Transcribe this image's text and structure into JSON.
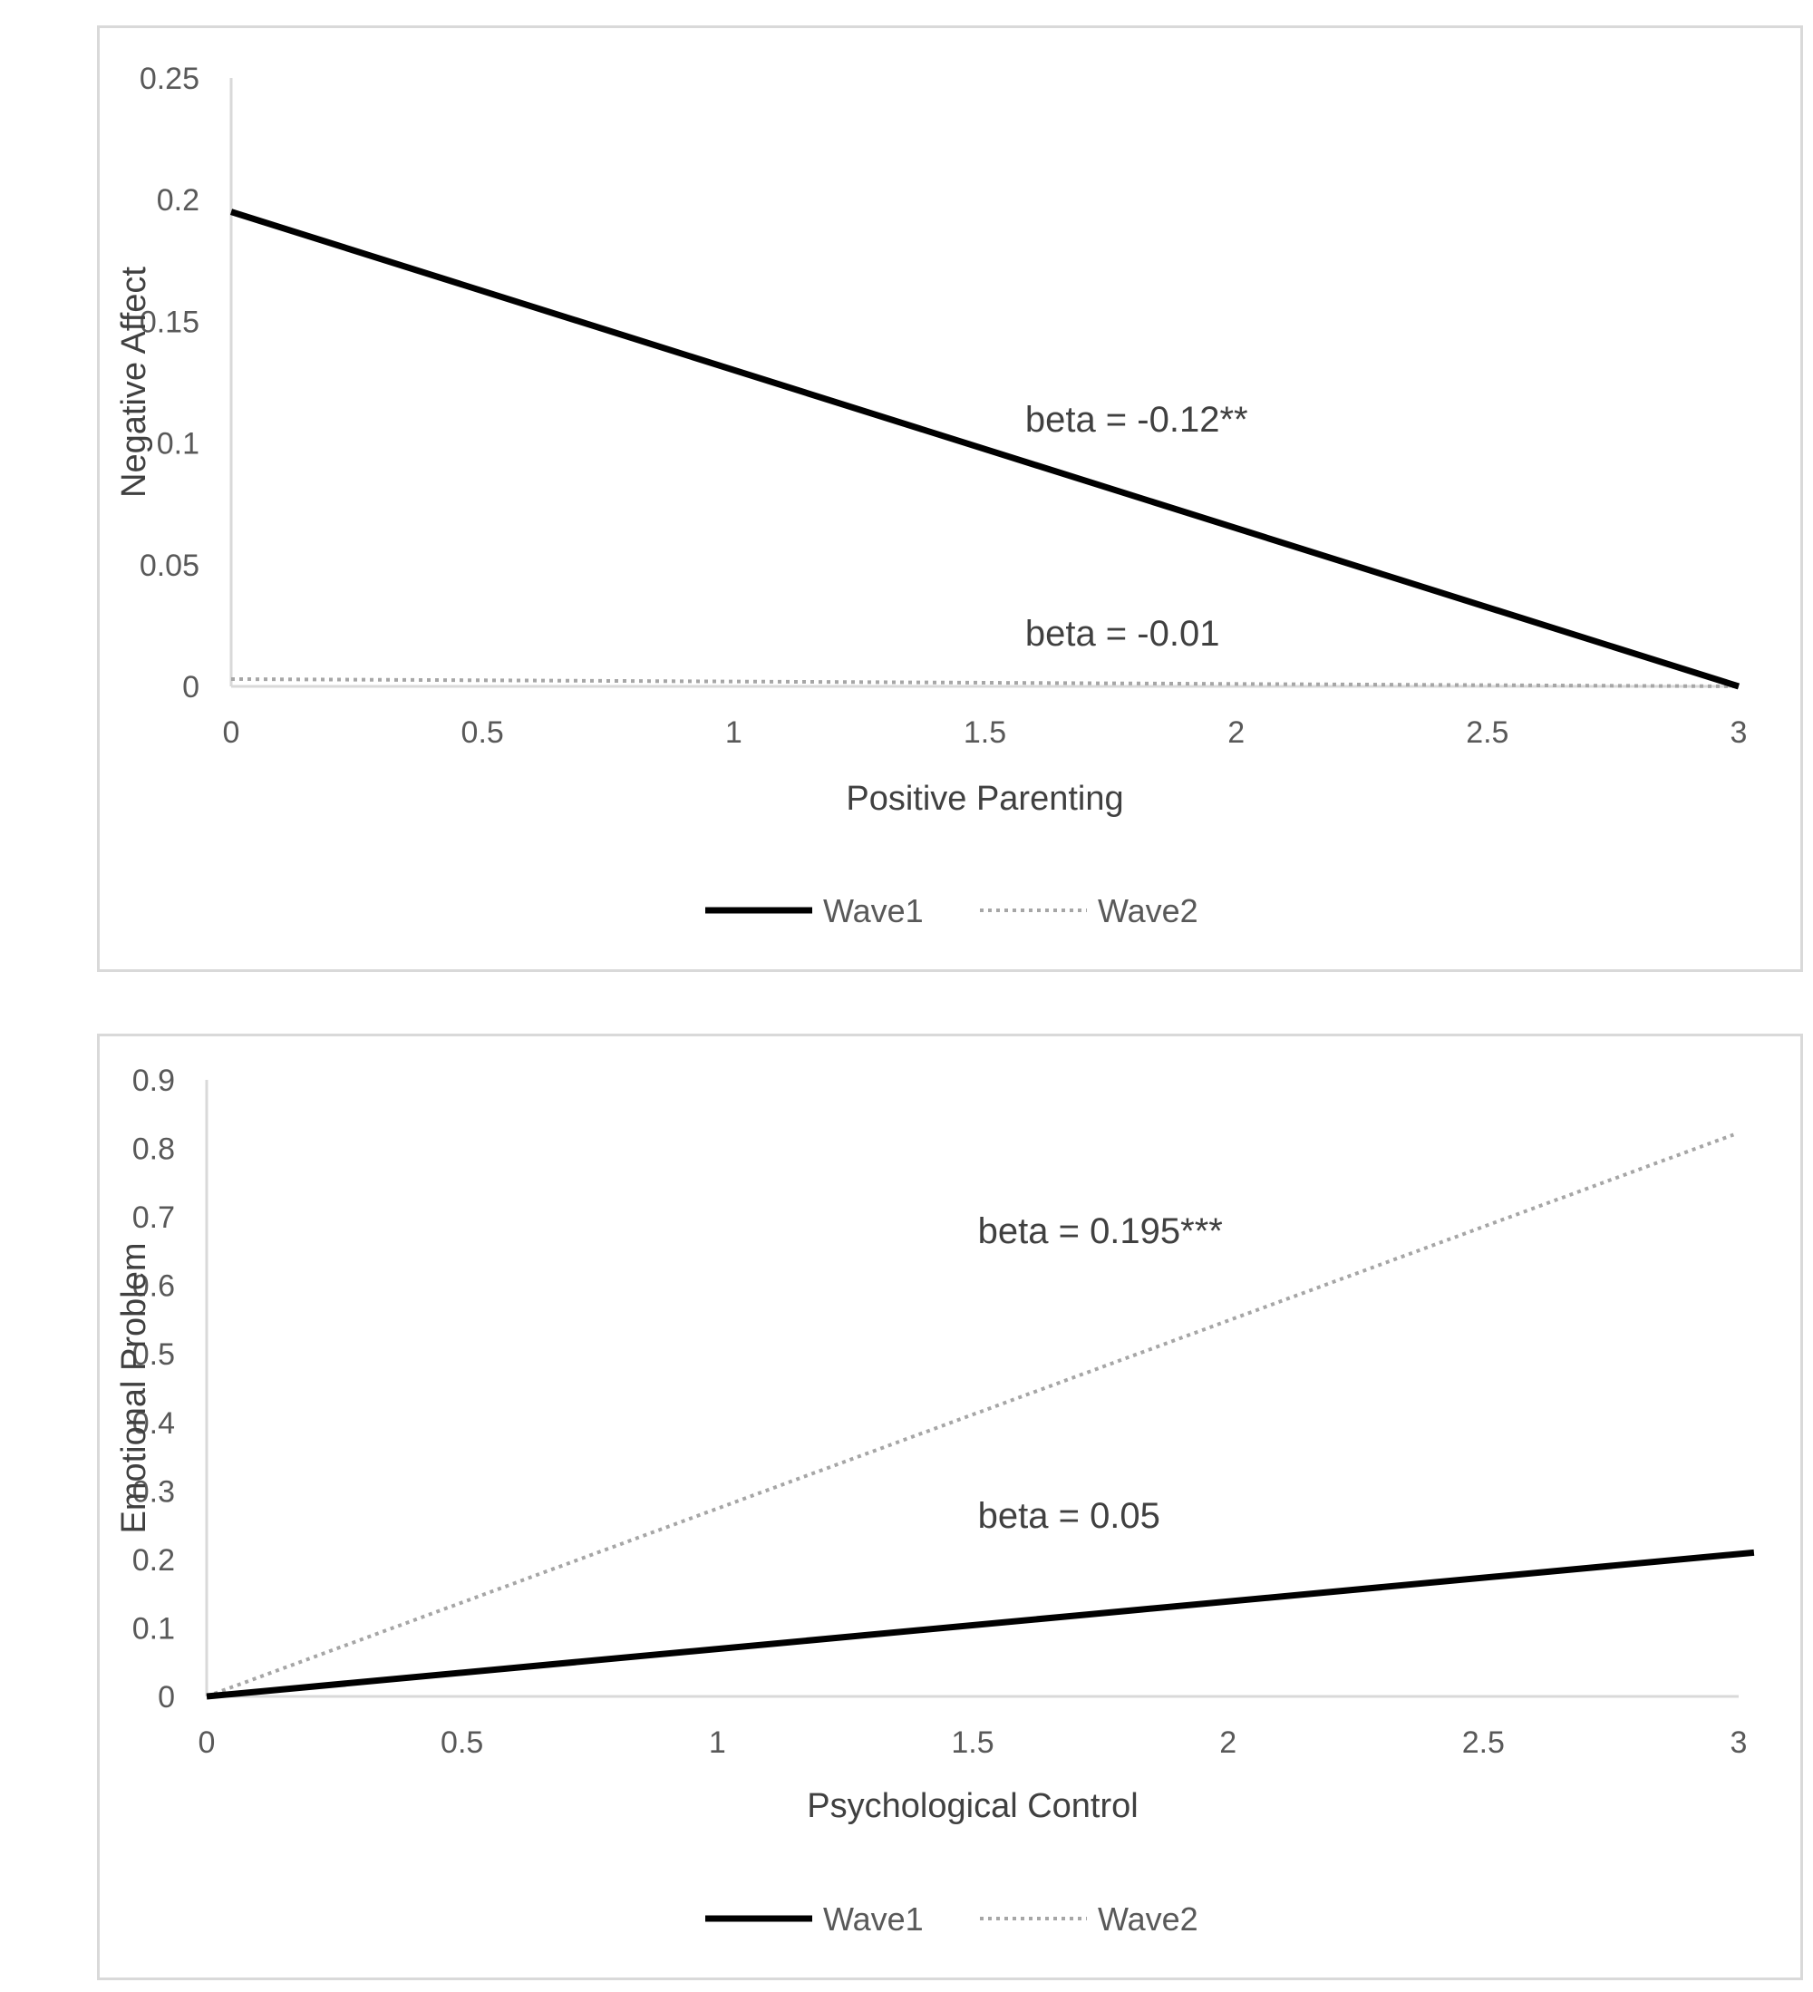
{
  "chart_data": [
    {
      "type": "line",
      "xlabel": "Positive Parenting",
      "ylabel": "Negative Affect",
      "xlim": [
        0,
        3
      ],
      "ylim": [
        0,
        0.25
      ],
      "x_ticks": [
        "0",
        "0.5",
        "1",
        "1.5",
        "2",
        "2.5",
        "3"
      ],
      "y_ticks": [
        "0",
        "0.05",
        "0.1",
        "0.15",
        "0.2",
        "0.25"
      ],
      "grid": false,
      "legend_position": "bottom",
      "series": [
        {
          "name": "Wave1",
          "style": "solid",
          "color": "#000000",
          "x": [
            0,
            3
          ],
          "y": [
            0.195,
            0.0
          ]
        },
        {
          "name": "Wave2",
          "style": "dotted",
          "color": "#a6a6a6",
          "x": [
            0,
            3
          ],
          "y": [
            0.003,
            0.0
          ]
        }
      ],
      "annotations": [
        {
          "text": "beta = -0.12**",
          "x": 1.58,
          "y": 0.11
        },
        {
          "text": "beta = -0.01",
          "x": 1.58,
          "y": 0.022
        }
      ]
    },
    {
      "type": "line",
      "xlabel": "Psychological Control",
      "ylabel": "Emotional Problem",
      "xlim": [
        0,
        3
      ],
      "ylim": [
        0,
        0.9
      ],
      "x_ticks": [
        "0",
        "0.5",
        "1",
        "1.5",
        "2",
        "2.5",
        "3"
      ],
      "y_ticks": [
        "0",
        "0.1",
        "0.2",
        "0.3",
        "0.4",
        "0.5",
        "0.6",
        "0.7",
        "0.8",
        "0.9"
      ],
      "grid": false,
      "legend_position": "bottom",
      "series": [
        {
          "name": "Wave1",
          "style": "solid",
          "color": "#000000",
          "x": [
            0,
            3.03
          ],
          "y": [
            0.0,
            0.21
          ]
        },
        {
          "name": "Wave2",
          "style": "dotted",
          "color": "#a6a6a6",
          "x": [
            0,
            2.99
          ],
          "y": [
            0.0,
            0.82
          ]
        }
      ],
      "annotations": [
        {
          "text": "beta = 0.195***",
          "x": 1.51,
          "y": 0.68
        },
        {
          "text": "beta = 0.05",
          "x": 1.51,
          "y": 0.265
        }
      ]
    }
  ]
}
